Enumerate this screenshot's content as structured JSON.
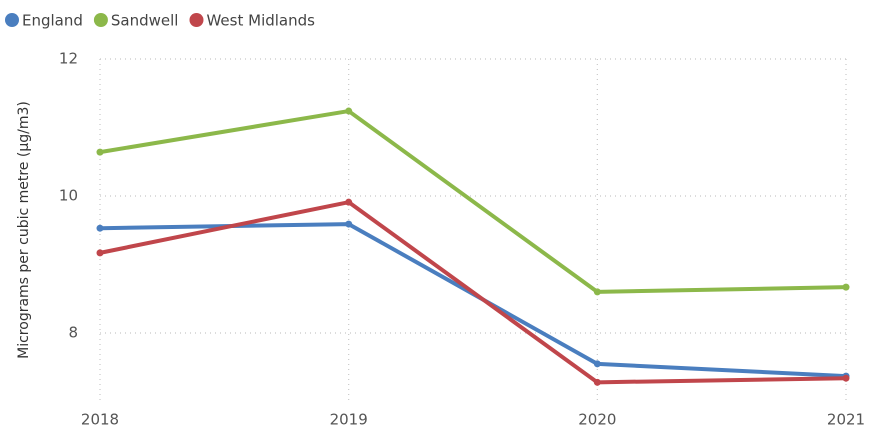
{
  "chart_data": {
    "type": "line",
    "categories": [
      "2018",
      "2019",
      "2020",
      "2021"
    ],
    "series": [
      {
        "name": "England",
        "color": "#4a7ebf",
        "values": [
          9.53,
          9.59,
          7.55,
          7.37
        ]
      },
      {
        "name": "Sandwell",
        "color": "#8cb84a",
        "values": [
          10.64,
          11.24,
          8.6,
          8.67
        ]
      },
      {
        "name": "West Midlands",
        "color": "#c0464b",
        "values": [
          9.17,
          9.91,
          7.28,
          7.34
        ]
      }
    ],
    "y_label": "Micrograms per cubic metre (µg/m3)",
    "ylim": [
      7,
      12
    ],
    "yticks": [
      8,
      10,
      12
    ],
    "grid": true,
    "legend": "top-left"
  }
}
